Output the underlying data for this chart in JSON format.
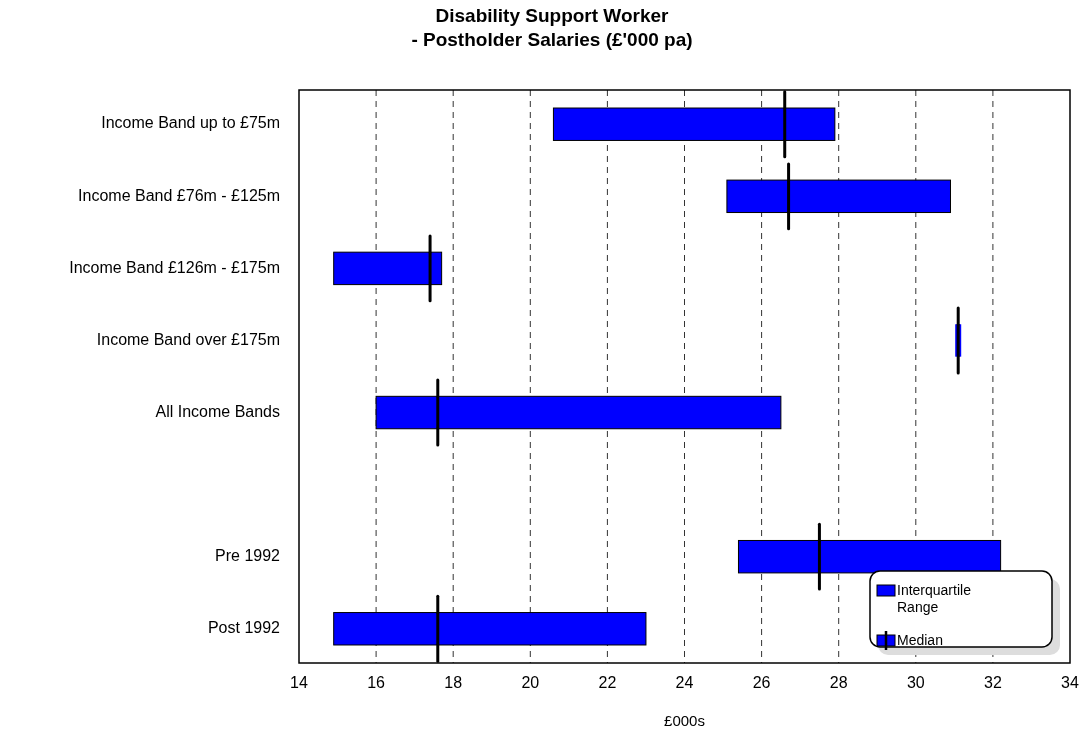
{
  "chart_data": {
    "type": "box",
    "orientation": "horizontal",
    "title": "Disability Support Worker\n- Postholder Salaries (£'000 pa)",
    "xlabel": "£000s",
    "categories": [
      "Income Band up to £75m",
      "Income Band £76m - £125m",
      "Income Band £126m - £175m",
      "Income Band over £175m",
      "All Income Bands",
      null,
      "Pre 1992",
      "Post 1992"
    ],
    "series": [
      {
        "name": "Interquartile Range",
        "color": "#0000ff",
        "boxes": [
          {
            "low": 20.6,
            "q1": 20.6,
            "median": 26.6,
            "q3": 27.9,
            "high": 27.9
          },
          {
            "low": 25.1,
            "q1": 25.1,
            "median": 26.7,
            "q3": 30.9,
            "high": 30.9
          },
          {
            "low": 14.9,
            "q1": 14.9,
            "median": 17.4,
            "q3": 17.7,
            "high": 17.7
          },
          {
            "low": 31.1,
            "q1": 31.1,
            "median": 31.1,
            "q3": 31.1,
            "high": 31.1
          },
          {
            "low": 16.0,
            "q1": 16.0,
            "median": 17.6,
            "q3": 26.5,
            "high": 26.5
          },
          null,
          {
            "low": 25.4,
            "q1": 25.4,
            "median": 27.5,
            "q3": 32.2,
            "high": 32.2
          },
          {
            "low": 14.9,
            "q1": 14.9,
            "median": 17.6,
            "q3": 23.0,
            "high": 23.0
          }
        ]
      }
    ],
    "annotations": [
      "Median"
    ],
    "xlim": [
      14,
      34
    ],
    "xticks": [
      14,
      16,
      18,
      20,
      22,
      24,
      26,
      28,
      30,
      32,
      34
    ],
    "grid": "x",
    "legend": "bottom right"
  }
}
